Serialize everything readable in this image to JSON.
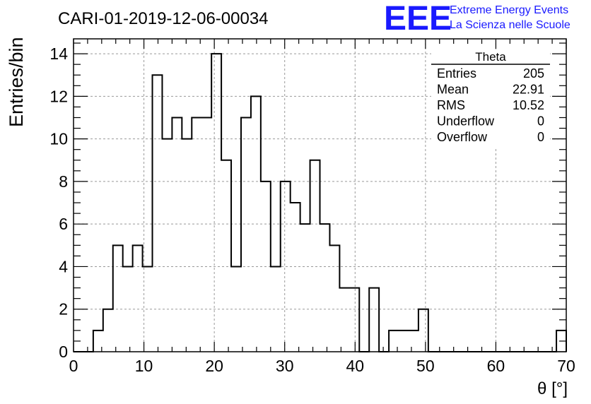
{
  "chart_data": {
    "type": "histogram",
    "title": "CARI-01-2019-12-06-00034",
    "xlabel": "θ [°]",
    "ylabel": "Entries/bin",
    "xlim": [
      0,
      70
    ],
    "ylim": [
      0,
      14.7
    ],
    "grid": true,
    "bin_width": 1.4,
    "x_ticks": [
      0,
      10,
      20,
      30,
      40,
      50,
      60,
      70
    ],
    "y_ticks": [
      0,
      2,
      4,
      6,
      8,
      10,
      12,
      14
    ],
    "bin_edges": [
      0,
      1.4,
      2.8,
      4.2,
      5.6,
      7.0,
      8.4,
      9.8,
      11.2,
      12.6,
      14.0,
      15.4,
      16.8,
      18.2,
      19.6,
      21.0,
      22.4,
      23.8,
      25.2,
      26.6,
      28.0,
      29.4,
      30.8,
      32.2,
      33.6,
      35.0,
      36.4,
      37.8,
      39.2,
      40.6,
      42.0,
      43.4,
      44.8,
      46.2,
      47.6,
      49.0,
      50.4,
      51.8,
      53.2,
      54.6,
      56.0,
      57.4,
      58.8,
      60.2,
      61.6,
      63.0,
      64.4,
      65.8,
      67.2,
      68.6,
      70.0
    ],
    "values": [
      0,
      0,
      1,
      2,
      5,
      4,
      5,
      4,
      13,
      10,
      11,
      10,
      11,
      11,
      14,
      9,
      4,
      11,
      12,
      8,
      4,
      8,
      7,
      6,
      9,
      6,
      5,
      3,
      3,
      0,
      3,
      0,
      1,
      1,
      1,
      2,
      0,
      0,
      0,
      0,
      0,
      0,
      0,
      0,
      0,
      0,
      0,
      0,
      0,
      1
    ]
  },
  "stats_box": {
    "title": "Theta",
    "rows": [
      {
        "label": "Entries",
        "value": "205"
      },
      {
        "label": "Mean",
        "value": "22.91"
      },
      {
        "label": "RMS",
        "value": "10.52"
      },
      {
        "label": "Underflow",
        "value": "0"
      },
      {
        "label": "Overflow",
        "value": "0"
      }
    ]
  },
  "logo": {
    "mark": "EEE",
    "line1": "Extreme Energy Events",
    "line2": "La Scienza nelle Scuole",
    "color": "#1a1aff"
  }
}
